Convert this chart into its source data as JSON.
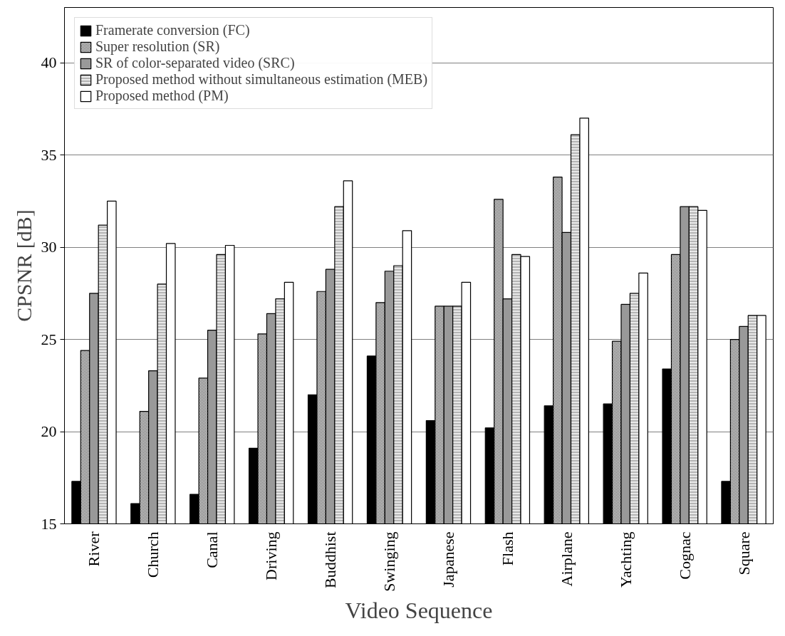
{
  "chart_data": {
    "type": "bar",
    "xlabel": "Video Sequence",
    "ylabel": "CPSNR [dB]",
    "categories": [
      "River",
      "Church",
      "Canal",
      "Driving",
      "Buddhist",
      "Swinging",
      "Japanese",
      "Flash",
      "Airplane",
      "Yachting",
      "Cognac",
      "Square"
    ],
    "series": [
      {
        "name": "Framerate conversion (FC)",
        "color": "#000000",
        "values": [
          17.3,
          16.1,
          16.6,
          19.1,
          22.0,
          24.1,
          20.6,
          20.2,
          21.4,
          21.5,
          23.4,
          17.3
        ]
      },
      {
        "name": "Super resolution (SR)",
        "color": "#d0d0d0",
        "values": [
          24.4,
          21.1,
          22.9,
          25.3,
          27.6,
          27.0,
          26.8,
          32.6,
          33.8,
          24.9,
          29.6,
          25.0
        ]
      },
      {
        "name": "SR of color-separated video (SRC)",
        "color": "#999999",
        "values": [
          27.5,
          23.3,
          25.5,
          26.4,
          28.8,
          28.7,
          26.8,
          27.2,
          30.8,
          26.9,
          32.2,
          25.7
        ]
      },
      {
        "name": "Proposed method without simultaneous estimation (MEB)",
        "color": "#e8e8e8",
        "values": [
          31.2,
          28.0,
          29.6,
          27.2,
          32.2,
          29.0,
          26.8,
          29.6,
          36.1,
          27.5,
          32.2,
          26.3
        ]
      },
      {
        "name": "Proposed method (PM)",
        "color": "#ffffff",
        "values": [
          32.5,
          30.2,
          30.1,
          28.1,
          33.6,
          30.9,
          28.1,
          29.5,
          37.0,
          28.6,
          32.0,
          26.3
        ]
      }
    ],
    "ylim": [
      15,
      43
    ],
    "yticks": [
      15,
      20,
      25,
      30,
      35,
      40
    ],
    "grid": "y",
    "legend": "top left"
  }
}
